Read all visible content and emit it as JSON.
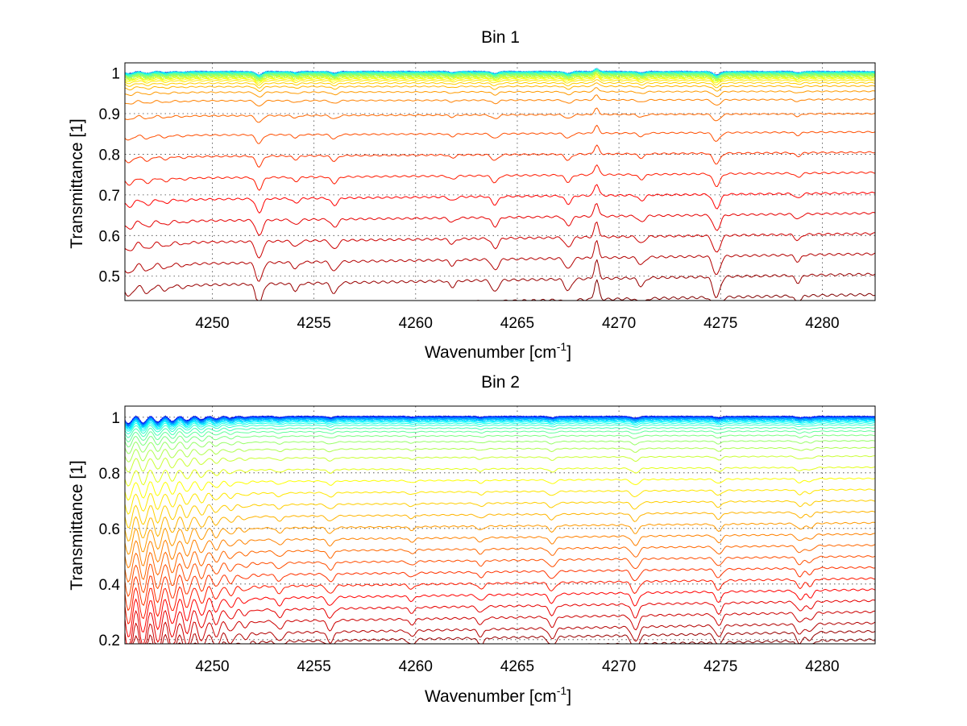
{
  "chart_data": [
    {
      "type": "line",
      "title": "Bin 1",
      "xlabel": "Wavenumber [cm",
      "xlabel_sup": "-1",
      "xlabel_end": "]",
      "ylabel": "Transmittance [1]",
      "xlim": [
        4245.7,
        4282.6
      ],
      "ylim": [
        0.44,
        1.025
      ],
      "xticks": [
        4250,
        4255,
        4260,
        4265,
        4270,
        4275,
        4280
      ],
      "yticks": [
        0.5,
        0.6,
        0.7,
        0.8,
        0.9,
        1
      ],
      "grid": true,
      "series_count": 40,
      "series_baselines_at_4282": [
        0.455,
        0.505,
        0.555,
        0.605,
        0.655,
        0.705,
        0.755,
        0.805,
        0.855,
        0.9,
        0.935,
        0.955,
        0.968,
        0.976,
        0.982,
        0.986,
        0.989,
        0.991,
        0.993,
        0.995,
        0.996,
        0.997,
        0.998,
        0.999,
        0.999,
        1.0,
        1.0,
        1.0,
        1.0,
        1.0,
        1.0,
        1.0,
        1.0,
        1.0,
        1.0,
        1.0,
        1.0,
        1.0,
        1.0,
        1.0
      ],
      "absorption_lines": [
        {
          "x": 4252.3,
          "depth": 0.035,
          "width": 0.22
        },
        {
          "x": 4254.1,
          "depth": 0.012,
          "width": 0.2
        },
        {
          "x": 4256.0,
          "depth": 0.018,
          "width": 0.22
        },
        {
          "x": 4261.8,
          "depth": 0.01,
          "width": 0.2
        },
        {
          "x": 4263.9,
          "depth": 0.02,
          "width": 0.22
        },
        {
          "x": 4267.5,
          "depth": 0.02,
          "width": 0.22
        },
        {
          "x": 4271.1,
          "depth": 0.014,
          "width": 0.22
        },
        {
          "x": 4274.8,
          "depth": 0.035,
          "width": 0.24
        },
        {
          "x": 4278.8,
          "depth": 0.012,
          "width": 0.2
        }
      ],
      "emission_lines": [
        {
          "x": 4268.9,
          "depth": -0.03,
          "width": 0.15
        }
      ],
      "edge_oscillation": {
        "start": 4245.7,
        "end": 4249.5,
        "period": 0.9,
        "amplitude": 0.02
      }
    },
    {
      "type": "line",
      "title": "Bin 2",
      "xlabel": "Wavenumber [cm",
      "xlabel_sup": "-1",
      "xlabel_end": "]",
      "ylabel": "Transmittance [1]",
      "xlim": [
        4245.7,
        4282.6
      ],
      "ylim": [
        0.185,
        1.04
      ],
      "xticks": [
        4250,
        4255,
        4260,
        4265,
        4270,
        4275,
        4280
      ],
      "yticks": [
        0.2,
        0.4,
        0.6,
        0.8,
        1
      ],
      "grid": true,
      "series_count": 40,
      "series_baselines_at_4282": [
        0.2,
        0.23,
        0.26,
        0.3,
        0.34,
        0.38,
        0.42,
        0.46,
        0.5,
        0.54,
        0.58,
        0.62,
        0.66,
        0.7,
        0.74,
        0.78,
        0.82,
        0.86,
        0.89,
        0.915,
        0.935,
        0.95,
        0.962,
        0.972,
        0.979,
        0.984,
        0.988,
        0.991,
        0.993,
        0.995,
        0.996,
        0.997,
        0.998,
        0.999,
        1.0,
        1.0,
        1.0,
        1.0,
        1.0,
        1.0
      ],
      "absorption_lines": [
        {
          "x": 4253.3,
          "depth": 0.015,
          "width": 0.22
        },
        {
          "x": 4255.8,
          "depth": 0.018,
          "width": 0.22
        },
        {
          "x": 4259.8,
          "depth": 0.01,
          "width": 0.2
        },
        {
          "x": 4263.2,
          "depth": 0.012,
          "width": 0.2
        },
        {
          "x": 4266.7,
          "depth": 0.018,
          "width": 0.22
        },
        {
          "x": 4270.8,
          "depth": 0.025,
          "width": 0.24
        },
        {
          "x": 4274.9,
          "depth": 0.02,
          "width": 0.22
        },
        {
          "x": 4278.9,
          "depth": 0.018,
          "width": 0.22
        },
        {
          "x": 4279.4,
          "depth": 0.014,
          "width": 0.2
        }
      ],
      "emission_lines": [],
      "edge_oscillation": {
        "start": 4245.7,
        "end": 4252.5,
        "period": 0.72,
        "amplitude": 0.09
      }
    }
  ]
}
